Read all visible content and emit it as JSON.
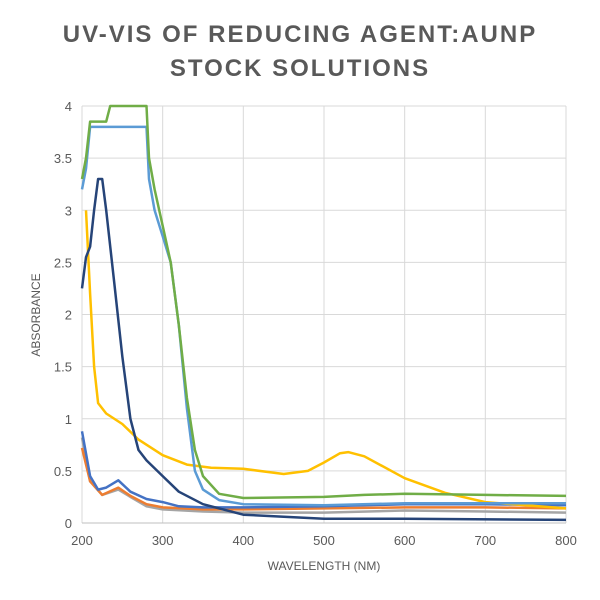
{
  "chart_data": {
    "type": "line",
    "title": "UV-VIS OF REDUCING AGENT:AUNP STOCK SOLUTIONS",
    "title_lines": [
      "UV-VIS OF REDUCING AGENT:AUNP",
      "STOCK SOLUTIONS"
    ],
    "xlabel": "WAVELENGTH (NM)",
    "ylabel": "ABSORBANCE",
    "xlim": [
      200,
      800
    ],
    "ylim": [
      0,
      4
    ],
    "xticks": [
      "200",
      "300",
      "400",
      "500",
      "600",
      "700",
      "800"
    ],
    "yticks": [
      "0",
      "0.5",
      "1",
      "1.5",
      "2",
      "2.5",
      "3",
      "3.5",
      "4"
    ],
    "grid": true,
    "legend": "none",
    "series": [
      {
        "color": "#A5A5A5",
        "x": [
          200,
          210,
          225,
          245,
          260,
          280,
          300,
          350,
          400,
          500,
          600,
          700,
          800
        ],
        "y": [
          0.82,
          0.4,
          0.27,
          0.32,
          0.25,
          0.16,
          0.13,
          0.11,
          0.1,
          0.1,
          0.12,
          0.11,
          0.1
        ]
      },
      {
        "color": "#ED7D31",
        "x": [
          200,
          210,
          225,
          245,
          260,
          280,
          300,
          350,
          400,
          500,
          600,
          700,
          800
        ],
        "y": [
          0.72,
          0.4,
          0.27,
          0.34,
          0.26,
          0.18,
          0.15,
          0.13,
          0.13,
          0.14,
          0.15,
          0.15,
          0.14
        ]
      },
      {
        "color": "#4472C4",
        "x": [
          200,
          210,
          220,
          230,
          245,
          260,
          280,
          300,
          320,
          350,
          400,
          500,
          600,
          700,
          800
        ],
        "y": [
          0.88,
          0.45,
          0.32,
          0.34,
          0.41,
          0.3,
          0.23,
          0.2,
          0.16,
          0.15,
          0.15,
          0.16,
          0.18,
          0.18,
          0.17
        ]
      },
      {
        "color": "#FFC000",
        "x": [
          205,
          210,
          215,
          220,
          230,
          250,
          270,
          300,
          330,
          360,
          400,
          450,
          480,
          500,
          520,
          530,
          550,
          600,
          650,
          700,
          750,
          800
        ],
        "y": [
          3.0,
          2.2,
          1.5,
          1.15,
          1.05,
          0.95,
          0.8,
          0.65,
          0.56,
          0.53,
          0.52,
          0.47,
          0.5,
          0.58,
          0.67,
          0.68,
          0.64,
          0.43,
          0.29,
          0.2,
          0.17,
          0.14
        ]
      },
      {
        "color": "#5B9BD5",
        "x": [
          200,
          205,
          210,
          230,
          260,
          280,
          283,
          290,
          300,
          310,
          320,
          330,
          340,
          350,
          370,
          400,
          500,
          600,
          700,
          800
        ],
        "y": [
          3.2,
          3.4,
          3.8,
          3.8,
          3.8,
          3.8,
          3.3,
          3.0,
          2.75,
          2.5,
          1.9,
          1.1,
          0.5,
          0.32,
          0.22,
          0.18,
          0.17,
          0.19,
          0.19,
          0.19
        ]
      },
      {
        "color": "#70AD47",
        "x": [
          200,
          205,
          210,
          230,
          235,
          280,
          283,
          290,
          300,
          310,
          320,
          330,
          340,
          350,
          370,
          400,
          500,
          550,
          600,
          700,
          800
        ],
        "y": [
          3.3,
          3.5,
          3.85,
          3.85,
          4.0,
          4.0,
          3.5,
          3.2,
          2.85,
          2.5,
          1.9,
          1.2,
          0.7,
          0.45,
          0.28,
          0.24,
          0.25,
          0.27,
          0.28,
          0.27,
          0.26
        ]
      },
      {
        "color": "#264478",
        "x": [
          200,
          205,
          210,
          215,
          220,
          225,
          230,
          240,
          250,
          260,
          270,
          280,
          300,
          320,
          350,
          400,
          450,
          500,
          600,
          800
        ],
        "y": [
          2.25,
          2.55,
          2.65,
          3.0,
          3.3,
          3.3,
          3.0,
          2.3,
          1.6,
          1.0,
          0.7,
          0.6,
          0.45,
          0.3,
          0.18,
          0.08,
          0.06,
          0.04,
          0.04,
          0.03
        ]
      }
    ]
  }
}
